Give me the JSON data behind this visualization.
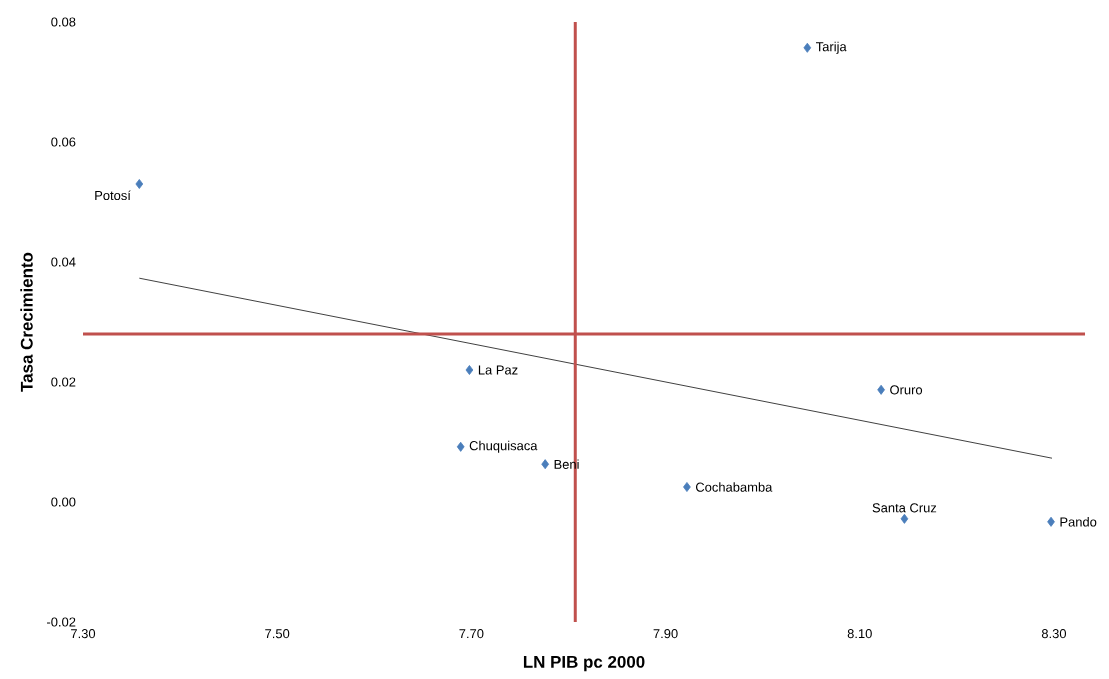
{
  "chart_data": {
    "type": "scatter",
    "xlabel": "LN PIB pc 2000",
    "ylabel": "Tasa Crecimiento",
    "xlim": [
      7.3,
      8.332
    ],
    "ylim": [
      -0.02,
      0.08
    ],
    "xticks": [
      {
        "value": 7.3,
        "label": "7.30"
      },
      {
        "value": 7.5,
        "label": "7.50"
      },
      {
        "value": 7.7,
        "label": "7.70"
      },
      {
        "value": 7.9,
        "label": "7.90"
      },
      {
        "value": 8.1,
        "label": "8.10"
      },
      {
        "value": 8.3,
        "label": "8.30"
      }
    ],
    "yticks": [
      {
        "value": -0.02,
        "label": "-0.02"
      },
      {
        "value": 0,
        "label": "0.00"
      },
      {
        "value": 0.02,
        "label": "0.02"
      },
      {
        "value": 0.04,
        "label": "0.04"
      },
      {
        "value": 0.06,
        "label": "0.06"
      },
      {
        "value": 0.08,
        "label": "0.08"
      }
    ],
    "grid": false,
    "series": [
      {
        "type": "scatter",
        "color": "#4a7ebb",
        "marker": "diamond",
        "x": [
          8.046,
          7.358,
          7.698,
          8.122,
          7.689,
          7.776,
          7.922,
          8.146,
          8.297
        ],
        "values": [
          0.0757,
          0.053,
          0.022,
          0.0187,
          0.0092,
          0.0063,
          0.0025,
          -0.0028,
          -0.0033
        ]
      },
      {
        "type": "line",
        "color": "#404040",
        "x": [
          7.358,
          8.298
        ],
        "values": [
          0.0373,
          0.0073
        ]
      }
    ],
    "ref_lines": [
      {
        "axis": "x",
        "value": 7.807,
        "color": "#c0504d"
      },
      {
        "axis": "y",
        "value": 0.028,
        "color": "#c0504d"
      }
    ],
    "annotations": [
      {
        "text": "Tarija",
        "x": 8.046,
        "y": 0.0757
      },
      {
        "text": "Potosí",
        "x": 7.358,
        "y": 0.053
      },
      {
        "text": "La Paz",
        "x": 7.698,
        "y": 0.022
      },
      {
        "text": "Oruro",
        "x": 8.122,
        "y": 0.0187
      },
      {
        "text": "Chuquisaca",
        "x": 7.689,
        "y": 0.0092
      },
      {
        "text": "Beni",
        "x": 7.776,
        "y": 0.0063
      },
      {
        "text": "Cochabamba",
        "x": 7.922,
        "y": 0.0025
      },
      {
        "text": "Santa Cruz",
        "x": 8.146,
        "y": -0.0028
      },
      {
        "text": "Pando",
        "x": 8.297,
        "y": -0.0033
      }
    ]
  }
}
